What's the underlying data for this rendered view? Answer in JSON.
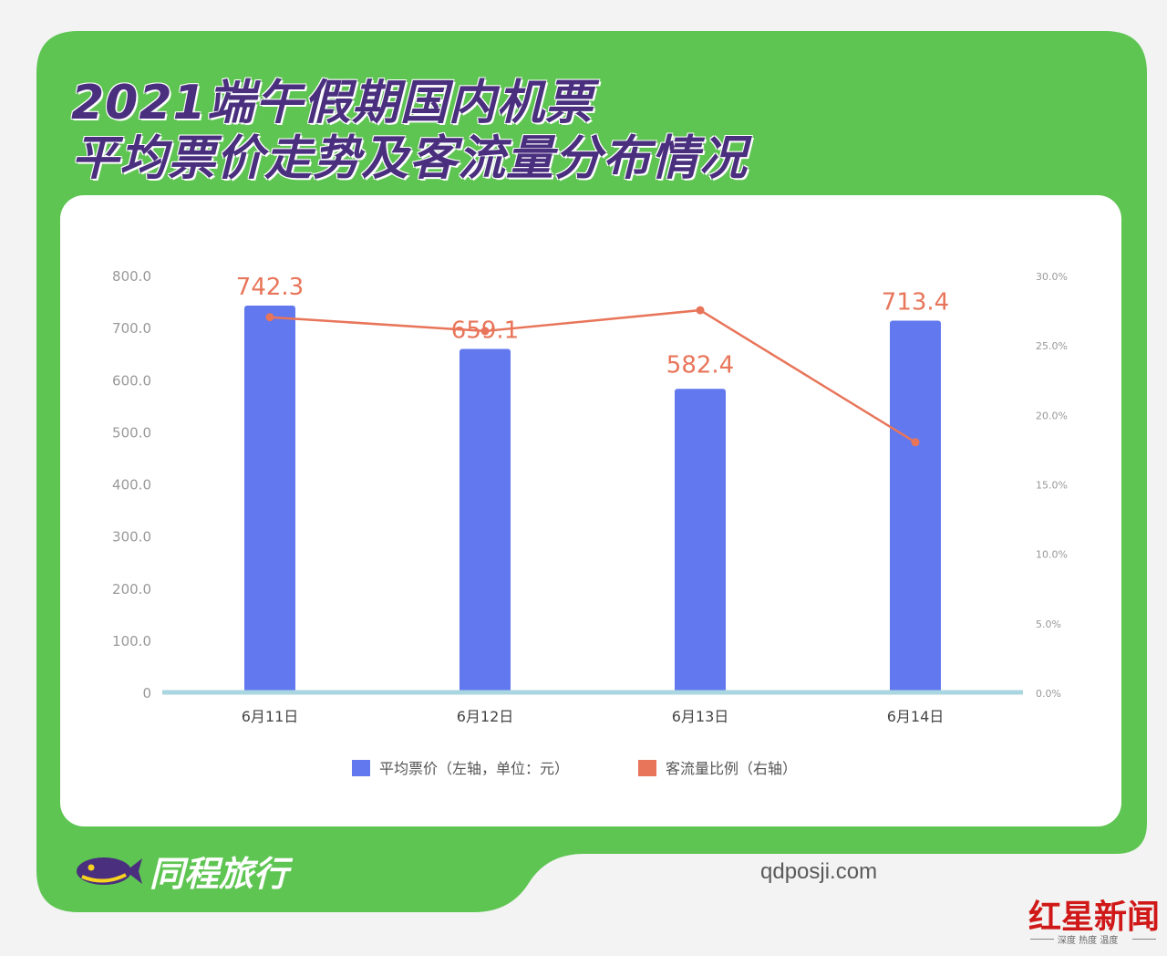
{
  "title_lines": [
    "2021端午假期国内机票",
    "平均票价走势及客流量分布情况"
  ],
  "colors": {
    "frame": "#5ec552",
    "title": "#4a2f7e",
    "bar": "#6178ee",
    "line": "#e8755a",
    "axis": "#a9d6e0",
    "tick": "#999999"
  },
  "chart_data": {
    "type": "bar",
    "categories": [
      "6月11日",
      "6月12日",
      "6月13日",
      "6月14日"
    ],
    "series": [
      {
        "name": "平均票价（左轴，单位：元）",
        "type": "bar",
        "axis": "left",
        "values": [
          742.3,
          659.1,
          582.4,
          713.4
        ],
        "labels": [
          "742.3",
          "659.1",
          "582.4",
          "713.4"
        ]
      },
      {
        "name": "客流量比例（右轴）",
        "type": "line",
        "axis": "right",
        "values": [
          27.0,
          26.0,
          27.5,
          18.0
        ]
      }
    ],
    "y_left": {
      "ylim": [
        0,
        800
      ],
      "ticks": [
        "0",
        "100.0",
        "200.0",
        "300.0",
        "400.0",
        "500.0",
        "600.0",
        "700.0",
        "800.0"
      ]
    },
    "y_right": {
      "ylim": [
        0,
        30
      ],
      "ticks": [
        "0.0%",
        "5.0%",
        "10.0%",
        "15.0%",
        "20.0%",
        "25.0%",
        "30.0%"
      ]
    },
    "grid": false,
    "legend": "bottom"
  },
  "brand": {
    "name": "同程旅行"
  },
  "watermark": "qdposji.com",
  "news_logo": {
    "name": "红星新闻",
    "tagline": "深度 热度 温度"
  }
}
